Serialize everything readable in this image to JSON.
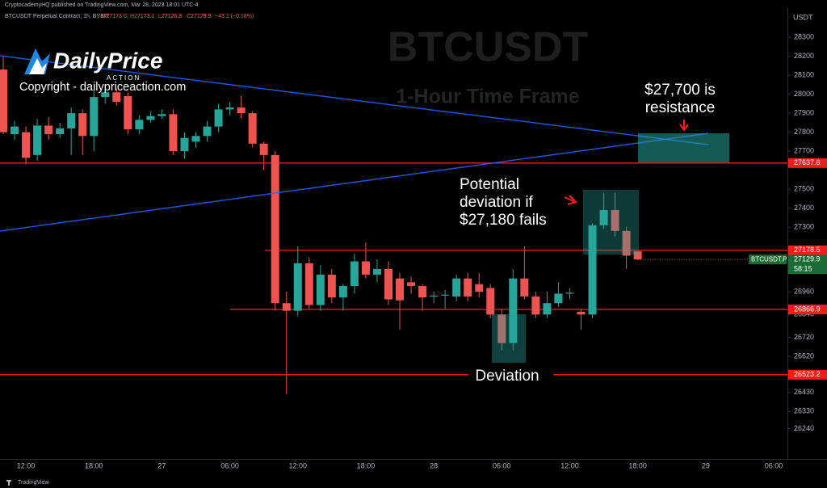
{
  "header": {
    "publisher": "CryptocademyHQ published on TradingView.com, Mar 28, 2023 18:01 UTC-4",
    "symbol": "BTCUSDT Perpetual Contract, 1h, BYBIT",
    "ohlc": [
      "O27173.0",
      "H27173.1",
      "L27126.8",
      "C27129.9"
    ],
    "change": "−43.1 (−0.16%)"
  },
  "logo": {
    "name": "DailyPrice",
    "tagline": "ACTION",
    "copyright": "Copyright - dailypriceaction.com"
  },
  "footer": "TradingView",
  "chart_data": {
    "type": "candlestick",
    "watermark": [
      "BTCUSDT",
      "1-Hour Time Frame"
    ],
    "y_unit": "USDT",
    "up_color": "#26a69a",
    "down_color": "#ef5350",
    "grid": false,
    "categories": [
      null,
      null,
      "12:00",
      null,
      null,
      null,
      null,
      null,
      "18:00",
      null,
      null,
      null,
      null,
      null,
      "27",
      null,
      null,
      null,
      null,
      null,
      "06:00",
      null,
      null,
      null,
      null,
      null,
      "12:00",
      null,
      null,
      null,
      null,
      null,
      "18:00",
      null,
      null,
      null,
      null,
      null,
      "28",
      null,
      null,
      null,
      null,
      null,
      "06:00",
      null,
      null,
      null,
      null,
      null,
      "12:00",
      null,
      null,
      null,
      null,
      null,
      "18:00",
      null,
      null,
      null,
      null,
      null,
      "29",
      null,
      null,
      null,
      null,
      null,
      "06:00",
      null
    ],
    "open": [
      28130,
      27790,
      27800,
      27680,
      27835,
      27790,
      27820,
      27900,
      27780,
      27985,
      28010,
      27990,
      27815,
      27865,
      27885,
      27895,
      27700,
      27750,
      27780,
      27830,
      27920,
      27930,
      27900,
      27740,
      27680,
      26900,
      26860,
      27110,
      26890,
      27050,
      26930,
      26990,
      27120,
      27050,
      27080,
      27030,
      27010,
      26990,
      26935,
      26940,
      26935,
      27030,
      27000,
      26980,
      26840,
      26690,
      27030,
      26935,
      26840,
      26900,
      26950,
      26855,
      26840,
      27310,
      27390,
      27280,
      27173.0,
      null,
      null,
      null,
      null,
      null,
      null,
      null,
      null,
      null,
      null,
      null,
      null,
      null
    ],
    "high": [
      28200,
      27860,
      27830,
      27870,
      27880,
      27850,
      27930,
      27920,
      28020,
      28050,
      28030,
      28010,
      27890,
      27910,
      27920,
      27920,
      27800,
      27800,
      27860,
      27950,
      27960,
      27990,
      27910,
      27750,
      27700,
      26960,
      27200,
      27140,
      27100,
      27080,
      27000,
      27160,
      27220,
      27130,
      27120,
      27060,
      27040,
      27000,
      26960,
      26970,
      27050,
      27060,
      27060,
      27000,
      26870,
      27080,
      27200,
      26960,
      26960,
      27010,
      26980,
      26870,
      27320,
      27480,
      27480,
      27300,
      27173.1,
      null,
      null,
      null,
      null,
      null,
      null,
      null,
      null,
      null,
      null,
      null,
      null,
      null
    ],
    "low": [
      27790,
      27760,
      27630,
      27650,
      27760,
      27770,
      27680,
      27680,
      27700,
      27950,
      27940,
      27790,
      27790,
      27850,
      27870,
      27680,
      27660,
      27720,
      27750,
      27800,
      27890,
      27870,
      27720,
      27600,
      26860,
      26420,
      26830,
      26870,
      26860,
      26900,
      26860,
      26950,
      27030,
      27010,
      26890,
      26760,
      26950,
      26860,
      26900,
      26870,
      26910,
      26910,
      26930,
      26820,
      26650,
      26650,
      26920,
      26820,
      26820,
      26880,
      26920,
      26760,
      26820,
      27290,
      27250,
      27080,
      27126.8,
      null,
      null,
      null,
      null,
      null,
      null,
      null,
      null,
      null,
      null,
      null,
      null,
      null
    ],
    "close": [
      27800,
      27830,
      27665,
      27835,
      27790,
      27820,
      27900,
      27780,
      27985,
      28010,
      27960,
      27815,
      27865,
      27885,
      27895,
      27700,
      27770,
      27780,
      27830,
      27920,
      27930,
      27900,
      27740,
      27680,
      26900,
      26860,
      27110,
      26890,
      27050,
      26930,
      26990,
      27120,
      27050,
      27080,
      26920,
      26915,
      26990,
      26930,
      26940,
      26945,
      27030,
      26935,
      26960,
      26840,
      26690,
      27030,
      26935,
      26840,
      26900,
      26950,
      26955,
      26840,
      27310,
      27390,
      27280,
      27150,
      27129.9,
      null,
      null,
      null,
      null,
      null,
      null,
      null,
      null,
      null,
      null,
      null,
      null,
      null
    ],
    "ylim": [
      26080,
      28445
    ],
    "yticks": [
      26240,
      26330,
      26430,
      26620,
      26720,
      26840,
      26960,
      27300,
      27400,
      27500,
      27700,
      27800,
      27900,
      28000,
      28100,
      28200,
      28300
    ],
    "levels": [
      27637.6,
      27178.5,
      26866.9,
      26523.2
    ],
    "level_color": "#ff1a1a",
    "last_price": 27129.9,
    "last_price_symbol": "BTCUSDT.P",
    "countdown": "58:15",
    "annotations": [
      {
        "lines": [
          "$27,700 is",
          "resistance"
        ]
      },
      {
        "lines": [
          "Potential",
          "deviation if",
          "$27,180 fails"
        ]
      },
      {
        "lines": [
          "Deviation"
        ]
      }
    ]
  }
}
